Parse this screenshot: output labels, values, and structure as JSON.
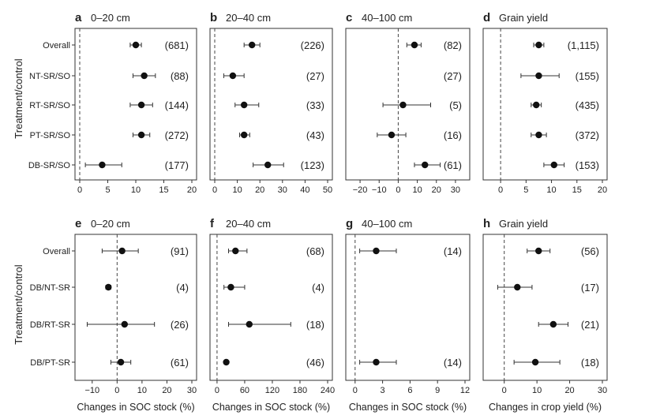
{
  "figure": {
    "ylabel": "Treatment/control",
    "xlabel_soc": "Changes in SOC stock (%)",
    "xlabel_yield": "Changes in crop yield (%)"
  },
  "chart_data": [
    {
      "type": "forest",
      "letter": "a",
      "title": "0–20 cm",
      "xlabel": "",
      "xlim": [
        0,
        20
      ],
      "xticks": [
        0,
        5,
        10,
        15,
        20
      ],
      "zero": 0,
      "categories": [
        "Overall",
        "NT-SR/SO",
        "RT-SR/SO",
        "PT-SR/SO",
        "DB-SR/SO"
      ],
      "mean": [
        10,
        11.5,
        11,
        11,
        4
      ],
      "low": [
        9,
        9.5,
        9,
        9.5,
        1
      ],
      "high": [
        11,
        13.5,
        13,
        12.5,
        7.5
      ],
      "labels": [
        "(681)",
        "(88)",
        "(144)",
        "(272)",
        "(177)"
      ]
    },
    {
      "type": "forest",
      "letter": "b",
      "title": "20–40 cm",
      "xlabel": "",
      "xlim": [
        0,
        50
      ],
      "xticks": [
        0,
        10,
        20,
        30,
        40,
        50
      ],
      "zero": 0,
      "categories": [
        "Overall",
        "NT-SR/SO",
        "RT-SR/SO",
        "PT-SR/SO",
        "DB-SR/SO"
      ],
      "mean": [
        16.5,
        8,
        13,
        13,
        23.5
      ],
      "low": [
        13,
        4,
        9,
        11,
        17
      ],
      "high": [
        20,
        13,
        19.5,
        15.5,
        30.5
      ],
      "labels": [
        "(226)",
        "(27)",
        "(33)",
        "(43)",
        "(123)"
      ]
    },
    {
      "type": "forest",
      "letter": "c",
      "title": "40–100 cm",
      "xlabel": "",
      "xlim": [
        -25,
        35
      ],
      "xticks": [
        -20,
        -10,
        0,
        10,
        20,
        30
      ],
      "zero": 0,
      "categories": [
        "Overall",
        "NT-SR/SO",
        "RT-SR/SO",
        "PT-SR/SO",
        "DB-SR/SO"
      ],
      "mean": [
        8.5,
        null,
        2.5,
        -3.5,
        14
      ],
      "low": [
        4.5,
        null,
        -8,
        -11,
        8.5
      ],
      "high": [
        12,
        null,
        17,
        4,
        22
      ],
      "labels": [
        "(82)",
        "(27)",
        "(5)",
        "(16)",
        "(61)"
      ]
    },
    {
      "type": "forest",
      "letter": "d",
      "title": "Grain yield",
      "xlabel": "",
      "xlim": [
        -2.5,
        20
      ],
      "xticks": [
        0,
        5,
        10,
        15,
        20
      ],
      "zero": 0,
      "categories": [
        "Overall",
        "NT-SR/SO",
        "RT-SR/SO",
        "PT-SR/SO",
        "DB-SR/SO"
      ],
      "mean": [
        7.5,
        7.5,
        7,
        7.5,
        10.5
      ],
      "low": [
        6.5,
        4,
        6,
        6,
        8.5
      ],
      "high": [
        8.5,
        11.5,
        8,
        9,
        12.5
      ],
      "labels": [
        "(1,115)",
        "(155)",
        "(435)",
        "(372)",
        "(153)"
      ]
    },
    {
      "type": "forest",
      "letter": "e",
      "title": "0–20 cm",
      "xlabel": "Changes in SOC stock (%)",
      "xlim": [
        -15,
        30
      ],
      "xticks": [
        -10,
        0,
        10,
        20,
        30
      ],
      "zero": 0,
      "categories": [
        "Overall",
        "DB/NT-SR",
        "DB/RT-SR",
        "DB/PT-SR"
      ],
      "mean": [
        2,
        -3.5,
        3,
        1.5
      ],
      "low": [
        -6,
        -4.5,
        -12,
        -2.5
      ],
      "high": [
        8.5,
        -2.5,
        15,
        5.5
      ],
      "labels": [
        "(91)",
        "(4)",
        "(26)",
        "(61)"
      ]
    },
    {
      "type": "forest",
      "letter": "f",
      "title": "20–40 cm",
      "xlabel": "Changes in SOC stock (%)",
      "xlim": [
        -5,
        240
      ],
      "xticks": [
        0,
        60,
        120,
        180,
        240
      ],
      "zero": 0,
      "categories": [
        "Overall",
        "DB/NT-SR",
        "DB/RT-SR",
        "DB/PT-SR"
      ],
      "mean": [
        40,
        30,
        70,
        20
      ],
      "low": [
        25,
        15,
        25,
        17
      ],
      "high": [
        65,
        60,
        160,
        23
      ],
      "labels": [
        "(68)",
        "(4)",
        "(18)",
        "(46)"
      ]
    },
    {
      "type": "forest",
      "letter": "g",
      "title": "40–100 cm",
      "xlabel": "Changes in SOC stock (%)",
      "xlim": [
        -0.5,
        12
      ],
      "xticks": [
        0,
        3,
        6,
        9,
        12
      ],
      "zero": 0,
      "categories": [
        "Overall",
        "DB/NT-SR",
        "DB/RT-SR",
        "DB/PT-SR"
      ],
      "mean": [
        2.3,
        null,
        null,
        2.3
      ],
      "low": [
        0.5,
        null,
        null,
        0.5
      ],
      "high": [
        4.5,
        null,
        null,
        4.5
      ],
      "labels": [
        "(14)",
        "",
        "",
        "(14)"
      ]
    },
    {
      "type": "forest",
      "letter": "h",
      "title": "Grain yield",
      "xlabel": "Changes in crop yield (%)",
      "xlim": [
        -5,
        30
      ],
      "xticks": [
        0,
        10,
        20,
        30
      ],
      "zero": 0,
      "categories": [
        "Overall",
        "DB/NT-SR",
        "DB/RT-SR",
        "DB/PT-SR"
      ],
      "mean": [
        10.5,
        4,
        15,
        9.5
      ],
      "low": [
        7,
        -2,
        10.5,
        3
      ],
      "high": [
        14,
        8.5,
        19.5,
        17
      ],
      "labels": [
        "(56)",
        "(17)",
        "(21)",
        "(18)"
      ]
    }
  ]
}
